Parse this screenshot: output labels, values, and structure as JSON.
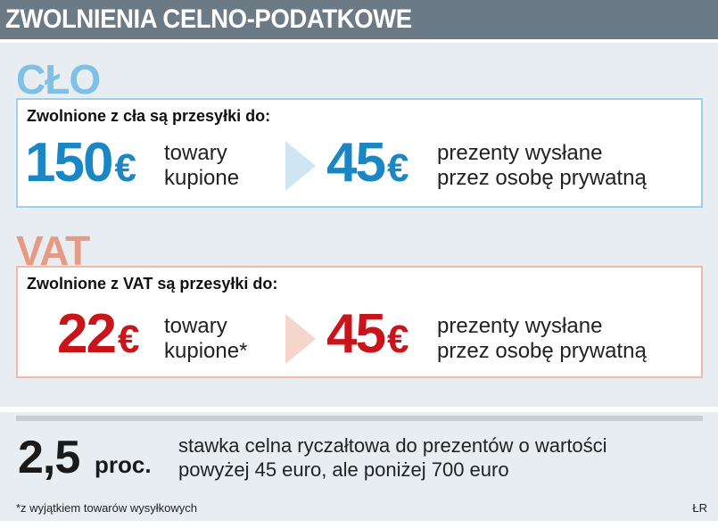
{
  "header": {
    "title": "ZWOLNIENIA CELNO-PODATKOWE"
  },
  "clo": {
    "word": "CŁO",
    "label": "Zwolnione z cła są przesyłki do:",
    "left_amount": "150",
    "left_currency": "€",
    "left_desc_line1": "towary",
    "left_desc_line2": "kupione",
    "right_amount": "45",
    "right_currency": "€",
    "right_desc_line1": "prezenty wysłane",
    "right_desc_line2": "przez osobę prywatną"
  },
  "vat": {
    "word": "VAT",
    "label": "Zwolnione z VAT są przesyłki do:",
    "left_amount": "22",
    "left_currency": "€",
    "left_desc_line1": "towary",
    "left_desc_line2": "kupione*",
    "right_amount": "45",
    "right_currency": "€",
    "right_desc_line1": "prezenty wysłane",
    "right_desc_line2": "przez osobę prywatną"
  },
  "rate": {
    "value": "2,5",
    "unit": "proc.",
    "desc_line1": "stawka celna ryczałtowa do prezentów o wartości",
    "desc_line2": "powyżej 45 euro, ale poniżej 700 euro"
  },
  "footer": {
    "footnote": "*z wyjątkiem towarów wysyłkowych",
    "credit": "ŁR"
  },
  "colors": {
    "header_bg": "#6b7a84",
    "clo_accent": "#1b86c4",
    "vat_accent": "#c8141a",
    "panel_bg": "#e8edf1"
  }
}
